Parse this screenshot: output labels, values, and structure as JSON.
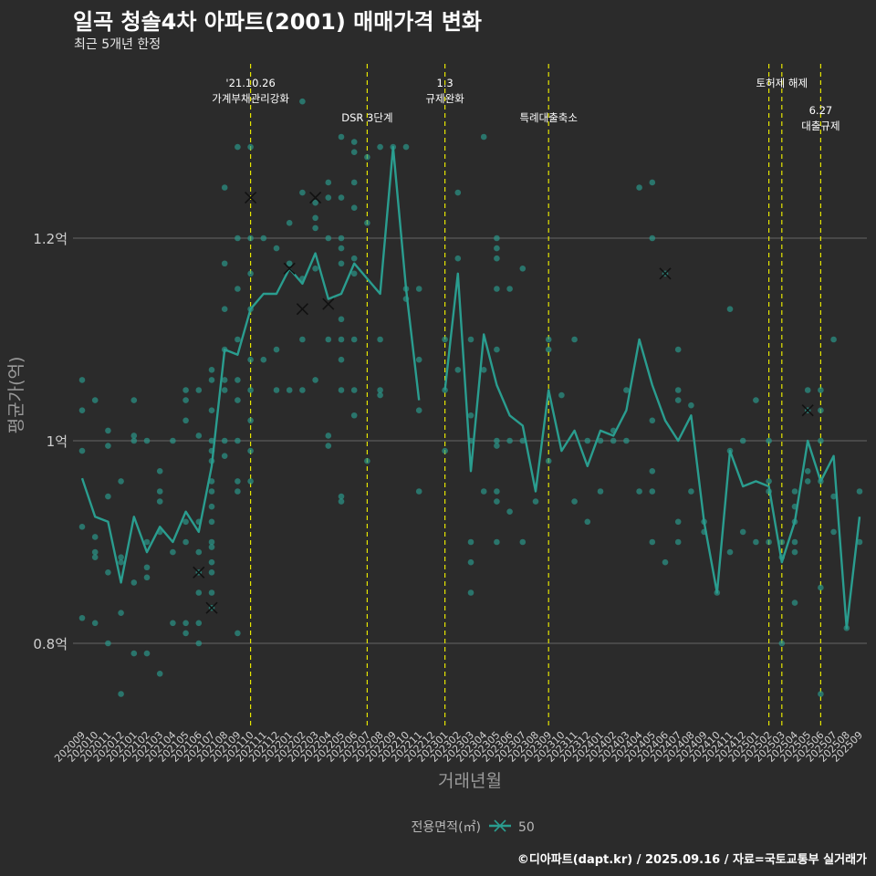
{
  "header": {
    "title": "일곡 청솔4차 아파트(2001) 매매가격 변화",
    "subtitle": "최근 5개년 한정"
  },
  "footer": {
    "credit": "©디아파트(dapt.kr) / 2025.09.16 / 자료=국토교통부 실거래가"
  },
  "colors": {
    "background": "#2b2b2b",
    "line": "#2a9d8f",
    "points": "#2a9d8f",
    "events": "#e6e600",
    "grid": "#666666",
    "text": "#ffffff"
  },
  "chart_data": {
    "type": "line",
    "xlabel": "거래년월",
    "ylabel": "평균가(억)",
    "ylim": [
      0.7,
      1.35
    ],
    "yticks": [
      0.8,
      1.0,
      1.2
    ],
    "ytick_labels": [
      "0.8억",
      "1억",
      "1.2억"
    ],
    "grid": true,
    "legend": {
      "title": "전용면적(㎡)",
      "position": "bottom",
      "entries": [
        "50"
      ]
    },
    "categories": [
      "202009",
      "202010",
      "202011",
      "202012",
      "202101",
      "202102",
      "202103",
      "202104",
      "202105",
      "202106",
      "202107",
      "202108",
      "202109",
      "202110",
      "202111",
      "202112",
      "202201",
      "202202",
      "202203",
      "202204",
      "202205",
      "202206",
      "202207",
      "202208",
      "202209",
      "202210",
      "202211",
      "202212",
      "202301",
      "202302",
      "202303",
      "202304",
      "202305",
      "202306",
      "202307",
      "202308",
      "202309",
      "202310",
      "202311",
      "202312",
      "202401",
      "202402",
      "202403",
      "202404",
      "202405",
      "202406",
      "202407",
      "202408",
      "202409",
      "202410",
      "202411",
      "202412",
      "202501",
      "202502",
      "202503",
      "202504",
      "202505",
      "202506",
      "202507",
      "202508",
      "202509"
    ],
    "series": [
      {
        "name": "50",
        "values": [
          0.963,
          0.925,
          0.92,
          0.86,
          0.925,
          0.89,
          0.915,
          0.9,
          0.93,
          0.91,
          0.975,
          1.09,
          1.085,
          1.13,
          1.145,
          1.145,
          1.17,
          1.155,
          1.185,
          1.14,
          1.145,
          1.175,
          1.16,
          1.145,
          1.29,
          1.15,
          1.04,
          null,
          1.05,
          1.165,
          0.97,
          1.105,
          1.055,
          1.025,
          1.015,
          0.95,
          1.05,
          0.99,
          1.01,
          0.975,
          1.01,
          1.005,
          1.03,
          1.1,
          1.055,
          1.02,
          1.0,
          1.025,
          0.92,
          0.85,
          0.99,
          0.955,
          0.96,
          0.955,
          0.88,
          0.92,
          1.0,
          0.96,
          0.985,
          0.815,
          0.925
        ]
      }
    ],
    "scatter_note": "individual transactions (circles) and markers (x)",
    "points": [
      [
        0,
        1.06
      ],
      [
        0,
        1.03
      ],
      [
        0,
        0.99
      ],
      [
        0,
        0.915
      ],
      [
        0,
        0.825
      ],
      [
        1,
        1.04
      ],
      [
        1,
        0.905
      ],
      [
        1,
        0.89
      ],
      [
        1,
        0.885
      ],
      [
        1,
        0.82
      ],
      [
        2,
        1.01
      ],
      [
        2,
        0.995
      ],
      [
        2,
        0.945
      ],
      [
        2,
        0.87
      ],
      [
        2,
        0.8
      ],
      [
        3,
        0.96
      ],
      [
        3,
        0.885
      ],
      [
        3,
        0.88
      ],
      [
        3,
        0.83
      ],
      [
        3,
        0.75
      ],
      [
        4,
        1.04
      ],
      [
        4,
        1.005
      ],
      [
        4,
        1.0
      ],
      [
        4,
        0.86
      ],
      [
        4,
        0.79
      ],
      [
        5,
        1.0
      ],
      [
        5,
        0.9
      ],
      [
        5,
        0.875
      ],
      [
        5,
        0.865
      ],
      [
        5,
        0.79
      ],
      [
        6,
        0.97
      ],
      [
        6,
        0.95
      ],
      [
        6,
        0.94
      ],
      [
        6,
        0.91
      ],
      [
        6,
        0.77
      ],
      [
        7,
        1.0
      ],
      [
        7,
        0.89
      ],
      [
        7,
        0.82
      ],
      [
        8,
        1.05
      ],
      [
        8,
        1.04
      ],
      [
        8,
        1.02
      ],
      [
        8,
        0.92
      ],
      [
        8,
        0.9
      ],
      [
        8,
        0.82
      ],
      [
        8,
        0.81
      ],
      [
        9,
        1.05
      ],
      [
        9,
        1.005
      ],
      [
        9,
        0.92
      ],
      [
        9,
        0.89
      ],
      [
        9,
        0.87
      ],
      [
        9,
        0.85
      ],
      [
        9,
        0.82
      ],
      [
        9,
        0.8
      ],
      [
        10,
        1.07
      ],
      [
        10,
        1.06
      ],
      [
        10,
        1.03
      ],
      [
        10,
        1.0
      ],
      [
        10,
        0.99
      ],
      [
        10,
        0.98
      ],
      [
        10,
        0.96
      ],
      [
        10,
        0.95
      ],
      [
        10,
        0.935
      ],
      [
        10,
        0.92
      ],
      [
        10,
        0.9
      ],
      [
        10,
        0.895
      ],
      [
        10,
        0.88
      ],
      [
        10,
        0.87
      ],
      [
        10,
        0.85
      ],
      [
        10,
        0.835
      ],
      [
        11,
        1.25
      ],
      [
        11,
        1.175
      ],
      [
        11,
        1.13
      ],
      [
        11,
        1.09
      ],
      [
        11,
        1.06
      ],
      [
        11,
        1.05
      ],
      [
        11,
        1.0
      ],
      [
        11,
        0.985
      ],
      [
        12,
        1.29
      ],
      [
        12,
        1.2
      ],
      [
        12,
        1.15
      ],
      [
        12,
        1.1
      ],
      [
        12,
        1.06
      ],
      [
        12,
        1.04
      ],
      [
        12,
        1.0
      ],
      [
        12,
        0.96
      ],
      [
        12,
        0.95
      ],
      [
        12,
        0.81
      ],
      [
        13,
        1.29
      ],
      [
        13,
        1.2
      ],
      [
        13,
        1.165
      ],
      [
        13,
        1.13
      ],
      [
        13,
        1.08
      ],
      [
        13,
        1.05
      ],
      [
        13,
        1.02
      ],
      [
        13,
        0.99
      ],
      [
        13,
        0.96
      ],
      [
        14,
        1.2
      ],
      [
        14,
        1.08
      ],
      [
        15,
        1.19
      ],
      [
        15,
        1.09
      ],
      [
        15,
        1.05
      ],
      [
        16,
        1.215
      ],
      [
        16,
        1.175
      ],
      [
        16,
        1.05
      ],
      [
        17,
        1.335
      ],
      [
        17,
        1.245
      ],
      [
        17,
        1.16
      ],
      [
        17,
        1.1
      ],
      [
        17,
        1.05
      ],
      [
        18,
        1.235
      ],
      [
        18,
        1.22
      ],
      [
        18,
        1.21
      ],
      [
        18,
        1.17
      ],
      [
        18,
        1.06
      ],
      [
        19,
        1.255
      ],
      [
        19,
        1.24
      ],
      [
        19,
        1.2
      ],
      [
        19,
        1.1
      ],
      [
        19,
        1.005
      ],
      [
        19,
        0.995
      ],
      [
        20,
        1.3
      ],
      [
        20,
        1.24
      ],
      [
        20,
        1.2
      ],
      [
        20,
        1.19
      ],
      [
        20,
        1.175
      ],
      [
        20,
        1.12
      ],
      [
        20,
        1.1
      ],
      [
        20,
        1.08
      ],
      [
        20,
        1.05
      ],
      [
        20,
        0.945
      ],
      [
        20,
        0.94
      ],
      [
        21,
        1.295
      ],
      [
        21,
        1.285
      ],
      [
        21,
        1.255
      ],
      [
        21,
        1.23
      ],
      [
        21,
        1.18
      ],
      [
        21,
        1.165
      ],
      [
        21,
        1.1
      ],
      [
        21,
        1.05
      ],
      [
        21,
        1.025
      ],
      [
        22,
        1.28
      ],
      [
        22,
        1.215
      ],
      [
        22,
        0.98
      ],
      [
        23,
        1.29
      ],
      [
        23,
        1.1
      ],
      [
        23,
        1.05
      ],
      [
        23,
        1.045
      ],
      [
        24,
        1.29
      ],
      [
        25,
        1.29
      ],
      [
        25,
        1.15
      ],
      [
        25,
        1.14
      ],
      [
        26,
        1.15
      ],
      [
        26,
        1.08
      ],
      [
        26,
        1.03
      ],
      [
        26,
        0.95
      ],
      [
        28,
        1.1
      ],
      [
        28,
        1.05
      ],
      [
        28,
        0.99
      ],
      [
        29,
        1.245
      ],
      [
        29,
        1.18
      ],
      [
        29,
        1.07
      ],
      [
        30,
        1.1
      ],
      [
        30,
        1.025
      ],
      [
        30,
        1.0
      ],
      [
        30,
        0.9
      ],
      [
        30,
        0.88
      ],
      [
        30,
        0.85
      ],
      [
        31,
        1.3
      ],
      [
        31,
        1.07
      ],
      [
        31,
        0.95
      ],
      [
        32,
        1.2
      ],
      [
        32,
        1.19
      ],
      [
        32,
        1.18
      ],
      [
        32,
        1.15
      ],
      [
        32,
        1.09
      ],
      [
        32,
        1.0
      ],
      [
        32,
        0.995
      ],
      [
        32,
        0.95
      ],
      [
        32,
        0.94
      ],
      [
        32,
        0.9
      ],
      [
        33,
        1.15
      ],
      [
        33,
        1.0
      ],
      [
        33,
        0.93
      ],
      [
        34,
        1.17
      ],
      [
        34,
        1.0
      ],
      [
        34,
        0.9
      ],
      [
        35,
        0.94
      ],
      [
        36,
        1.1
      ],
      [
        36,
        1.09
      ],
      [
        36,
        0.98
      ],
      [
        37,
        1.045
      ],
      [
        38,
        1.1
      ],
      [
        38,
        0.94
      ],
      [
        39,
        1.0
      ],
      [
        39,
        0.92
      ],
      [
        40,
        1.0
      ],
      [
        40,
        0.95
      ],
      [
        41,
        1.01
      ],
      [
        41,
        1.0
      ],
      [
        42,
        1.05
      ],
      [
        42,
        1.0
      ],
      [
        43,
        1.25
      ],
      [
        43,
        0.95
      ],
      [
        44,
        1.255
      ],
      [
        44,
        1.2
      ],
      [
        44,
        1.02
      ],
      [
        44,
        0.97
      ],
      [
        44,
        0.95
      ],
      [
        44,
        0.9
      ],
      [
        45,
        1.165
      ],
      [
        45,
        0.88
      ],
      [
        46,
        1.09
      ],
      [
        46,
        1.05
      ],
      [
        46,
        1.04
      ],
      [
        46,
        0.92
      ],
      [
        46,
        0.9
      ],
      [
        47,
        1.035
      ],
      [
        47,
        0.95
      ],
      [
        48,
        0.92
      ],
      [
        48,
        0.91
      ],
      [
        49,
        0.85
      ],
      [
        50,
        1.13
      ],
      [
        50,
        0.99
      ],
      [
        50,
        0.89
      ],
      [
        51,
        1.0
      ],
      [
        51,
        0.91
      ],
      [
        52,
        1.04
      ],
      [
        52,
        0.9
      ],
      [
        53,
        1.0
      ],
      [
        53,
        0.96
      ],
      [
        53,
        0.95
      ],
      [
        53,
        0.9
      ],
      [
        54,
        0.9
      ],
      [
        54,
        0.885
      ],
      [
        54,
        0.8
      ],
      [
        55,
        0.95
      ],
      [
        55,
        0.935
      ],
      [
        55,
        0.92
      ],
      [
        55,
        0.9
      ],
      [
        55,
        0.89
      ],
      [
        55,
        0.84
      ],
      [
        56,
        1.05
      ],
      [
        56,
        1.03
      ],
      [
        56,
        0.97
      ],
      [
        56,
        0.96
      ],
      [
        57,
        1.05
      ],
      [
        57,
        1.03
      ],
      [
        57,
        1.0
      ],
      [
        57,
        0.96
      ],
      [
        57,
        0.855
      ],
      [
        57,
        0.75
      ],
      [
        58,
        1.1
      ],
      [
        58,
        0.945
      ],
      [
        58,
        0.91
      ],
      [
        59,
        0.815
      ],
      [
        60,
        0.95
      ],
      [
        60,
        0.9
      ]
    ],
    "x_markers": [
      [
        13,
        1.24
      ],
      [
        16,
        1.17
      ],
      [
        17,
        1.13
      ],
      [
        18,
        1.24
      ],
      [
        19,
        1.135
      ],
      [
        9,
        0.87
      ],
      [
        10,
        0.835
      ],
      [
        45,
        1.165
      ],
      [
        56,
        1.03
      ]
    ],
    "events": [
      {
        "index": 13,
        "lines": [
          "'21.10.26",
          "가계부채관리강화"
        ],
        "row": 0
      },
      {
        "index": 22,
        "lines": [
          "DSR 3단계"
        ],
        "row": 1
      },
      {
        "index": 28,
        "lines": [
          "1.3",
          "규제완화"
        ],
        "row": 0
      },
      {
        "index": 36,
        "lines": [
          "특례대출축소"
        ],
        "row": 1
      },
      {
        "index": 53,
        "lines": [],
        "row": 0
      },
      {
        "index": 54,
        "lines": [
          "토허제 해제"
        ],
        "row": 0
      },
      {
        "index": 57,
        "lines": [
          "6.27",
          "대출규제"
        ],
        "row": 2
      }
    ]
  }
}
